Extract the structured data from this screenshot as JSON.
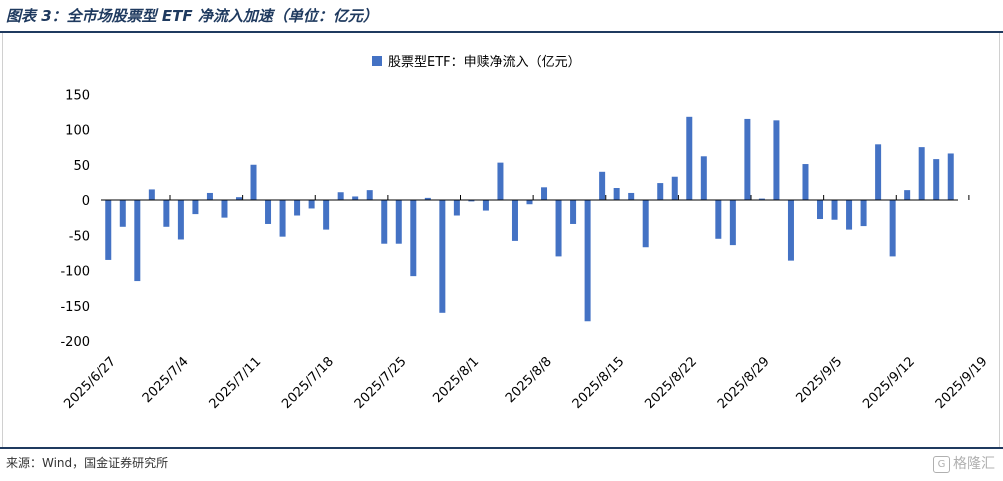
{
  "header": {
    "title": "图表 3：全市场股票型 ETF 净流入加速（单位：亿元）"
  },
  "footer": {
    "source": "来源：Wind，国金证券研究所",
    "watermark": "格隆汇"
  },
  "colors": {
    "bar": "#4472C4",
    "axis": "#000000",
    "title": "#1f3a5f"
  },
  "chart_data": {
    "type": "bar",
    "legend": "top-center",
    "series": [
      {
        "name": "股票型ETF：申赎净流入（亿元）",
        "values": [
          -85,
          -38,
          -115,
          15,
          -38,
          -56,
          -20,
          10,
          -25,
          4,
          50,
          -34,
          -52,
          -22,
          -12,
          -42,
          11,
          5,
          14,
          -62,
          -62,
          -108,
          3,
          -160,
          -22,
          -2,
          -15,
          53,
          -58,
          -6,
          18,
          -80,
          -34,
          -172,
          40,
          17,
          10,
          -67,
          24,
          33,
          118,
          62,
          -55,
          -64,
          115,
          2,
          113,
          -86,
          51,
          -27,
          -28,
          -42,
          -37,
          79,
          -80,
          14,
          75,
          58,
          66
        ]
      }
    ],
    "x_tick_labels": [
      "2025/6/27",
      "2025/7/4",
      "2025/7/11",
      "2025/7/18",
      "2025/7/25",
      "2025/8/1",
      "2025/8/8",
      "2025/8/15",
      "2025/8/22",
      "2025/8/29",
      "2025/9/5",
      "2025/9/12",
      "2025/9/19"
    ],
    "y_ticks": [
      150,
      100,
      50,
      0,
      -50,
      -100,
      -150,
      -200
    ],
    "ylim": [
      -200,
      150
    ],
    "grid": false
  }
}
